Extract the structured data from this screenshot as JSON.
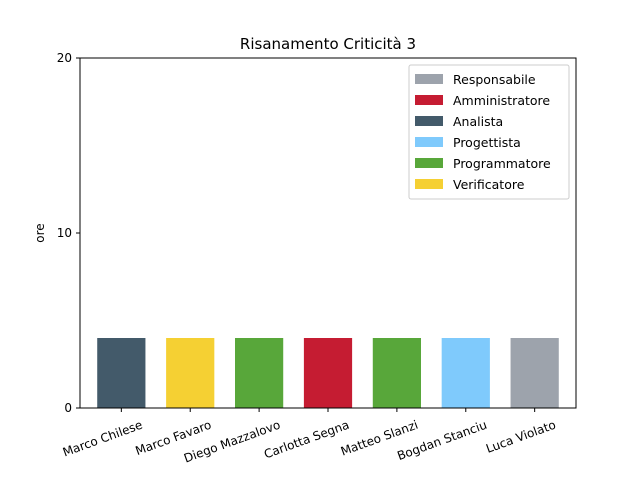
{
  "chart_data": {
    "type": "bar",
    "title": "Risanamento Criticità 3",
    "xlabel": "",
    "ylabel": "ore",
    "ylim": [
      0,
      20
    ],
    "yticks": [
      0,
      10,
      20
    ],
    "categories": [
      "Marco Chilese",
      "Marco Favaro",
      "Diego Mazzalovo",
      "Carlotta Segna",
      "Matteo Slanzi",
      "Bogdan Stanciu",
      "Luca Violato"
    ],
    "values": [
      4,
      4,
      4,
      4,
      4,
      4,
      4
    ],
    "bar_roles": [
      "Analista",
      "Verificatore",
      "Programmatore",
      "Amministratore",
      "Programmatore",
      "Progettista",
      "Responsabile"
    ],
    "legend": {
      "placement": "top-right",
      "entries": [
        {
          "label": "Responsabile",
          "color": "#9da3ac"
        },
        {
          "label": "Amministratore",
          "color": "#c51c32"
        },
        {
          "label": "Analista",
          "color": "#435a6a"
        },
        {
          "label": "Progettista",
          "color": "#7fcafc"
        },
        {
          "label": "Programmatore",
          "color": "#58a73a"
        },
        {
          "label": "Verificatore",
          "color": "#f5d033"
        }
      ]
    },
    "grid": false
  }
}
